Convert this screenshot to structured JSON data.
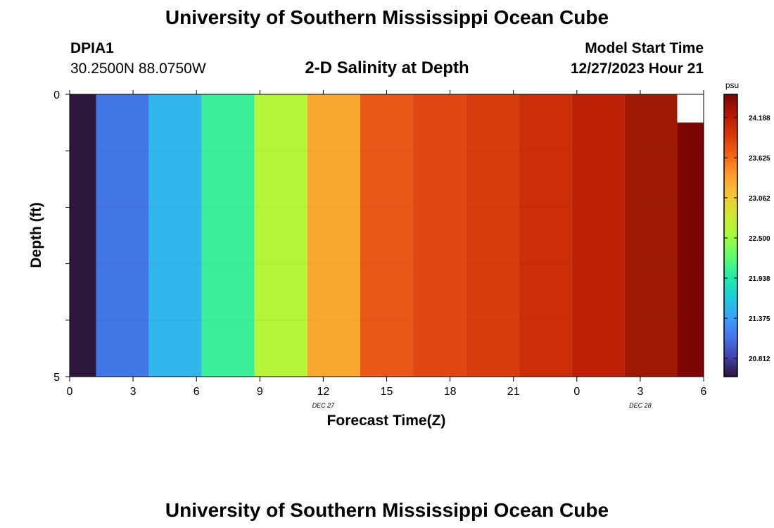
{
  "header": {
    "title": "University of Southern Mississippi Ocean Cube",
    "station_id": "DPIA1",
    "coordinates": "30.2500N  88.0750W",
    "model_start_label": "Model Start Time",
    "model_start_value": "12/27/2023 Hour 21"
  },
  "footer": {
    "title": "University of Southern Mississippi Ocean Cube"
  },
  "chart_data": {
    "type": "heatmap",
    "title": "2-D Salinity at Depth",
    "xlabel": "Forecast Time(Z)",
    "ylabel": "Depth (ft)",
    "x_ticks": [
      "0",
      "3",
      "6",
      "9",
      "12",
      "15",
      "18",
      "21",
      "0",
      "3",
      "6"
    ],
    "date_labels": [
      {
        "label": "DEC 27",
        "tick_index": 4
      },
      {
        "label": "DEC 28",
        "tick_index": 9
      }
    ],
    "y_ticks": [
      "0",
      "5"
    ],
    "y_range": [
      0,
      5
    ],
    "x_range_hours": [
      0,
      30
    ],
    "colorbar": {
      "unit": "psu",
      "labels": [
        "24.188",
        "23.625",
        "23.062",
        "22.500",
        "21.938",
        "21.375",
        "20.812"
      ],
      "colors_bottom_to_top": [
        "#30123b",
        "#4145ab",
        "#4675ed",
        "#39a2fc",
        "#1bcfd4",
        "#24eca6",
        "#61fc6c",
        "#a4fc3b",
        "#d1e834",
        "#f3c63a",
        "#fe9b2d",
        "#f36315",
        "#d93806",
        "#b11901",
        "#7a0402"
      ]
    },
    "columns": [
      {
        "x_start": 0,
        "x_end": 1.25,
        "salinity": 20.5,
        "color": "#2d163b",
        "depth_top": 0
      },
      {
        "x_start": 1.25,
        "x_end": 3.75,
        "salinity": 21.0,
        "color": "#4275e5",
        "depth_top": 0
      },
      {
        "x_start": 3.75,
        "x_end": 6.25,
        "salinity": 21.45,
        "color": "#30b6ea",
        "depth_top": 0
      },
      {
        "x_start": 6.25,
        "x_end": 8.75,
        "salinity": 21.95,
        "color": "#3cf09a",
        "depth_top": 0
      },
      {
        "x_start": 8.75,
        "x_end": 11.25,
        "salinity": 22.45,
        "color": "#b6f43a",
        "depth_top": 0
      },
      {
        "x_start": 11.25,
        "x_end": 13.75,
        "salinity": 23.05,
        "color": "#f8a830",
        "depth_top": 0
      },
      {
        "x_start": 13.75,
        "x_end": 16.25,
        "salinity": 23.55,
        "color": "#e95819",
        "depth_top": 0
      },
      {
        "x_start": 16.25,
        "x_end": 18.75,
        "salinity": 23.65,
        "color": "#e04812",
        "depth_top": 0
      },
      {
        "x_start": 18.75,
        "x_end": 21.25,
        "salinity": 23.75,
        "color": "#d63c0c",
        "depth_top": 0
      },
      {
        "x_start": 21.25,
        "x_end": 23.75,
        "salinity": 23.85,
        "color": "#cc2e08",
        "depth_top": 0
      },
      {
        "x_start": 23.75,
        "x_end": 26.25,
        "salinity": 23.95,
        "color": "#bd2204",
        "depth_top": 0
      },
      {
        "x_start": 26.25,
        "x_end": 28.75,
        "salinity": 24.1,
        "color": "#9e1a06",
        "depth_top": 0
      },
      {
        "x_start": 28.75,
        "x_end": 30,
        "salinity": 24.3,
        "color": "#7d0605",
        "depth_top": 0.5
      }
    ]
  }
}
